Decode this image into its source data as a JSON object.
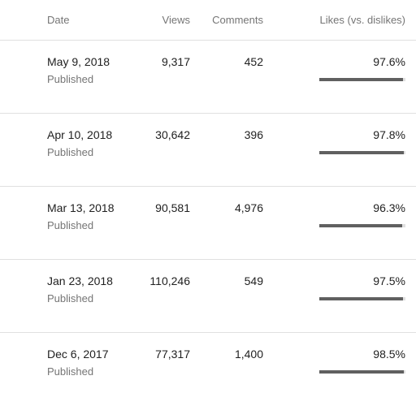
{
  "columns": {
    "date": "Date",
    "views": "Views",
    "comments": "Comments",
    "likes": "Likes (vs. dislikes)"
  },
  "rows": [
    {
      "date": "May 9, 2018",
      "status": "Published",
      "views": "9,317",
      "comments": "452",
      "likes": "97.6%",
      "likes_ratio": 97.6
    },
    {
      "date": "Apr 10, 2018",
      "status": "Published",
      "views": "30,642",
      "comments": "396",
      "likes": "97.8%",
      "likes_ratio": 97.8
    },
    {
      "date": "Mar 13, 2018",
      "status": "Published",
      "views": "90,581",
      "comments": "4,976",
      "likes": "96.3%",
      "likes_ratio": 96.3
    },
    {
      "date": "Jan 23, 2018",
      "status": "Published",
      "views": "110,246",
      "comments": "549",
      "likes": "97.5%",
      "likes_ratio": 97.5
    },
    {
      "date": "Dec 6, 2017",
      "status": "Published",
      "views": "77,317",
      "comments": "1,400",
      "likes": "98.5%",
      "likes_ratio": 98.5
    }
  ],
  "colors": {
    "bar_fill": "#606060",
    "bar_track": "#e0e0e0"
  }
}
